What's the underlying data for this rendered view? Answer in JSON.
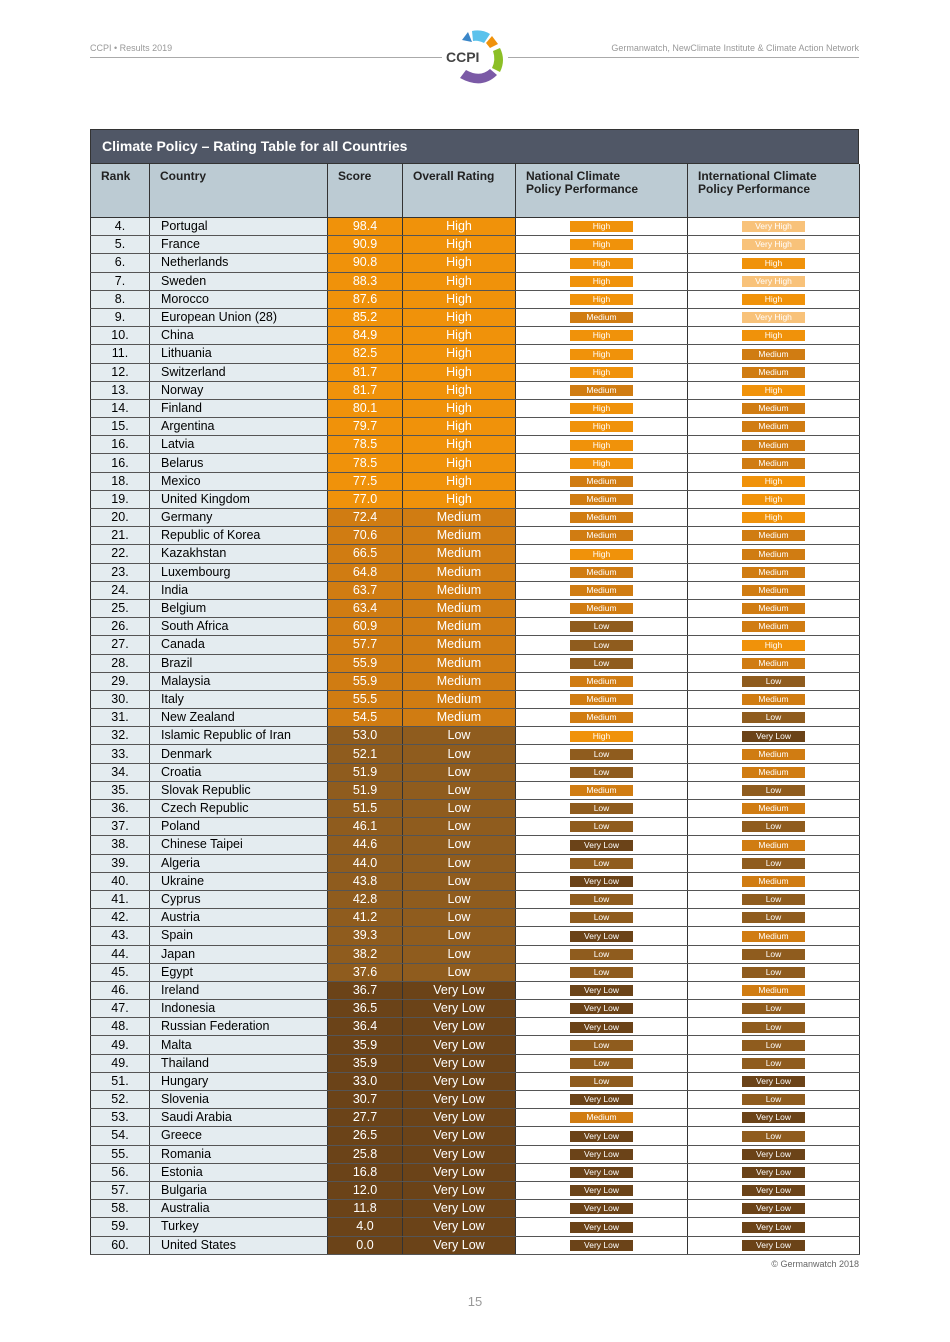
{
  "header": {
    "left": "CCPI • Results 2019",
    "right": "Germanwatch, NewClimate Institute & Climate Action Network",
    "logo_text": "CCPI"
  },
  "table": {
    "title": "Climate Policy – Rating Table for all Countries",
    "columns": [
      "Rank",
      "Country",
      "Score",
      "Overall Rating",
      "National Climate Policy Performance",
      "International Climate Policy Performance"
    ],
    "rows": [
      [
        "4.",
        "Portugal",
        "98.4",
        "High",
        "High",
        "Very High"
      ],
      [
        "5.",
        "France",
        "90.9",
        "High",
        "High",
        "Very High"
      ],
      [
        "6.",
        "Netherlands",
        "90.8",
        "High",
        "High",
        "High"
      ],
      [
        "7.",
        "Sweden",
        "88.3",
        "High",
        "High",
        "Very High"
      ],
      [
        "8.",
        "Morocco",
        "87.6",
        "High",
        "High",
        "High"
      ],
      [
        "9.",
        "European Union (28)",
        "85.2",
        "High",
        "Medium",
        "Very High"
      ],
      [
        "10.",
        "China",
        "84.9",
        "High",
        "High",
        "High"
      ],
      [
        "11.",
        "Lithuania",
        "82.5",
        "High",
        "High",
        "Medium"
      ],
      [
        "12.",
        "Switzerland",
        "81.7",
        "High",
        "High",
        "Medium"
      ],
      [
        "13.",
        "Norway",
        "81.7",
        "High",
        "Medium",
        "High"
      ],
      [
        "14.",
        "Finland",
        "80.1",
        "High",
        "High",
        "Medium"
      ],
      [
        "15.",
        "Argentina",
        "79.7",
        "High",
        "High",
        "Medium"
      ],
      [
        "16.",
        "Latvia",
        "78.5",
        "High",
        "High",
        "Medium"
      ],
      [
        "16.",
        "Belarus",
        "78.5",
        "High",
        "High",
        "Medium"
      ],
      [
        "18.",
        "Mexico",
        "77.5",
        "High",
        "Medium",
        "High"
      ],
      [
        "19.",
        "United Kingdom",
        "77.0",
        "High",
        "Medium",
        "High"
      ],
      [
        "20.",
        "Germany",
        "72.4",
        "Medium",
        "Medium",
        "High"
      ],
      [
        "21.",
        "Republic of Korea",
        "70.6",
        "Medium",
        "Medium",
        "Medium"
      ],
      [
        "22.",
        "Kazakhstan",
        "66.5",
        "Medium",
        "High",
        "Medium"
      ],
      [
        "23.",
        "Luxembourg",
        "64.8",
        "Medium",
        "Medium",
        "Medium"
      ],
      [
        "24.",
        "India",
        "63.7",
        "Medium",
        "Medium",
        "Medium"
      ],
      [
        "25.",
        "Belgium",
        "63.4",
        "Medium",
        "Medium",
        "Medium"
      ],
      [
        "26.",
        "South Africa",
        "60.9",
        "Medium",
        "Low",
        "Medium"
      ],
      [
        "27.",
        "Canada",
        "57.7",
        "Medium",
        "Low",
        "High"
      ],
      [
        "28.",
        "Brazil",
        "55.9",
        "Medium",
        "Low",
        "Medium"
      ],
      [
        "29.",
        "Malaysia",
        "55.9",
        "Medium",
        "Medium",
        "Low"
      ],
      [
        "30.",
        "Italy",
        "55.5",
        "Medium",
        "Medium",
        "Medium"
      ],
      [
        "31.",
        "New Zealand",
        "54.5",
        "Medium",
        "Medium",
        "Low"
      ],
      [
        "32.",
        "Islamic Republic of Iran",
        "53.0",
        "Low",
        "High",
        "Very Low"
      ],
      [
        "33.",
        "Denmark",
        "52.1",
        "Low",
        "Low",
        "Medium"
      ],
      [
        "34.",
        "Croatia",
        "51.9",
        "Low",
        "Low",
        "Medium"
      ],
      [
        "35.",
        "Slovak Republic",
        "51.9",
        "Low",
        "Medium",
        "Low"
      ],
      [
        "36.",
        "Czech Republic",
        "51.5",
        "Low",
        "Low",
        "Medium"
      ],
      [
        "37.",
        "Poland",
        "46.1",
        "Low",
        "Low",
        "Low"
      ],
      [
        "38.",
        "Chinese Taipei",
        "44.6",
        "Low",
        "Very Low",
        "Medium"
      ],
      [
        "39.",
        "Algeria",
        "44.0",
        "Low",
        "Low",
        "Low"
      ],
      [
        "40.",
        "Ukraine",
        "43.8",
        "Low",
        "Very Low",
        "Medium"
      ],
      [
        "41.",
        "Cyprus",
        "42.8",
        "Low",
        "Low",
        "Low"
      ],
      [
        "42.",
        "Austria",
        "41.2",
        "Low",
        "Low",
        "Low"
      ],
      [
        "43.",
        "Spain",
        "39.3",
        "Low",
        "Very Low",
        "Medium"
      ],
      [
        "44.",
        "Japan",
        "38.2",
        "Low",
        "Low",
        "Low"
      ],
      [
        "45.",
        "Egypt",
        "37.6",
        "Low",
        "Low",
        "Low"
      ],
      [
        "46.",
        "Ireland",
        "36.7",
        "Very Low",
        "Very Low",
        "Medium"
      ],
      [
        "47.",
        "Indonesia",
        "36.5",
        "Very Low",
        "Very Low",
        "Low"
      ],
      [
        "48.",
        "Russian Federation",
        "36.4",
        "Very Low",
        "Very Low",
        "Low"
      ],
      [
        "49.",
        "Malta",
        "35.9",
        "Very Low",
        "Low",
        "Low"
      ],
      [
        "49.",
        "Thailand",
        "35.9",
        "Very Low",
        "Low",
        "Low"
      ],
      [
        "51.",
        "Hungary",
        "33.0",
        "Very Low",
        "Low",
        "Very Low"
      ],
      [
        "52.",
        "Slovenia",
        "30.7",
        "Very Low",
        "Very Low",
        "Low"
      ],
      [
        "53.",
        "Saudi Arabia",
        "27.7",
        "Very Low",
        "Medium",
        "Very Low"
      ],
      [
        "54.",
        "Greece",
        "26.5",
        "Very Low",
        "Very Low",
        "Low"
      ],
      [
        "55.",
        "Romania",
        "25.8",
        "Very Low",
        "Very Low",
        "Very Low"
      ],
      [
        "56.",
        "Estonia",
        "16.8",
        "Very Low",
        "Very Low",
        "Very Low"
      ],
      [
        "57.",
        "Bulgaria",
        "12.0",
        "Very Low",
        "Very Low",
        "Very Low"
      ],
      [
        "58.",
        "Australia",
        "11.8",
        "Very Low",
        "Very Low",
        "Very Low"
      ],
      [
        "59.",
        "Turkey",
        "4.0",
        "Very Low",
        "Very Low",
        "Very Low"
      ],
      [
        "60.",
        "United States",
        "0.0",
        "Very Low",
        "Very Low",
        "Very Low"
      ]
    ]
  },
  "rating_colors": {
    "Very High": "#f8c27a",
    "High": "#f0920a",
    "Medium": "#d07c12",
    "Low": "#8f5c1e",
    "Very Low": "#6b4318"
  },
  "footer": {
    "copyright": "© Germanwatch 2018",
    "page_number": "15"
  }
}
